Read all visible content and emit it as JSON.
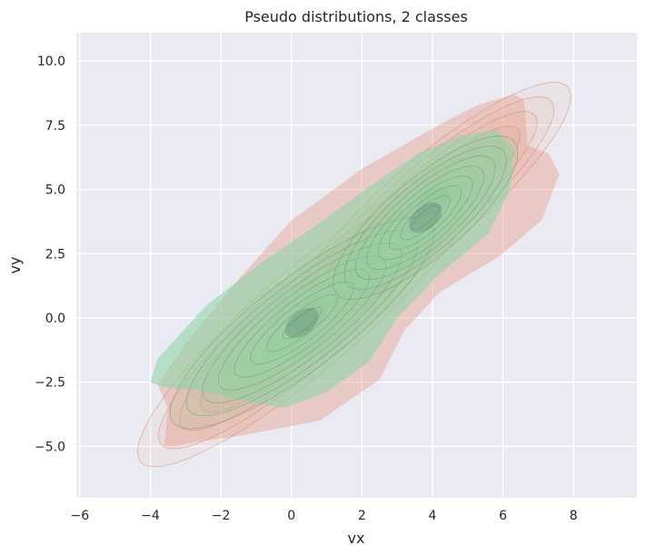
{
  "chart_data": {
    "type": "kde-contour",
    "title": "Pseudo distributions, 2 classes",
    "xlabel": "vx",
    "ylabel": "vy",
    "xlim": [
      -6.1,
      9.8
    ],
    "ylim": [
      -7.0,
      11.1
    ],
    "xticks": [
      -6,
      -4,
      -2,
      0,
      2,
      4,
      6,
      8
    ],
    "yticks": [
      -5.0,
      -2.5,
      0.0,
      2.5,
      5.0,
      7.5,
      10.0
    ],
    "xtick_labels": [
      "−6",
      "−4",
      "−2",
      "0",
      "2",
      "4",
      "6",
      "8"
    ],
    "ytick_labels": [
      "−5.0",
      "−2.5",
      "0.0",
      "2.5",
      "5.0",
      "7.5",
      "10.0"
    ],
    "grid": true,
    "background": "#eaeaf2",
    "series": [
      {
        "color": "#e8a28f",
        "fill_alpha": 0.45,
        "line_color": "#d9825e",
        "centers": [
          {
            "x": 0.5,
            "y": 0.0,
            "sx": 2.6,
            "sy": 3.1,
            "rho": 0.9,
            "weight": 0.6
          },
          {
            "x": 4.0,
            "y": 4.5,
            "sx": 2.1,
            "sy": 2.5,
            "rho": 0.88,
            "weight": 0.4
          }
        ],
        "outer_contour": [
          [
            -3.6,
            -5.0
          ],
          [
            -3.5,
            -3.5
          ],
          [
            -3.8,
            -2.6
          ],
          [
            -3.0,
            -1.0
          ],
          [
            -1.5,
            1.5
          ],
          [
            0.0,
            3.8
          ],
          [
            2.0,
            5.8
          ],
          [
            4.3,
            7.6
          ],
          [
            5.3,
            8.3
          ],
          [
            6.3,
            8.7
          ],
          [
            6.6,
            8.5
          ],
          [
            6.7,
            6.7
          ],
          [
            7.3,
            6.4
          ],
          [
            7.6,
            5.6
          ],
          [
            7.1,
            3.8
          ],
          [
            5.9,
            2.4
          ],
          [
            4.2,
            1.0
          ],
          [
            3.2,
            -0.5
          ],
          [
            2.5,
            -2.4
          ],
          [
            0.8,
            -4.0
          ],
          [
            -1.5,
            -4.6
          ],
          [
            -2.6,
            -4.8
          ],
          [
            -3.3,
            -5.0
          ]
        ]
      },
      {
        "color": "#8fd6a8",
        "fill_alpha": 0.6,
        "line_color": "#5b9e6e",
        "centers": [
          {
            "x": 0.3,
            "y": -0.2,
            "sx": 2.0,
            "sy": 2.2,
            "rho": 0.85,
            "weight": 0.6
          },
          {
            "x": 3.8,
            "y": 3.9,
            "sx": 1.4,
            "sy": 1.7,
            "rho": 0.8,
            "weight": 0.4
          }
        ],
        "outer_contour": [
          [
            -4.0,
            -2.5
          ],
          [
            -3.8,
            -1.6
          ],
          [
            -2.4,
            0.5
          ],
          [
            -0.8,
            2.2
          ],
          [
            0.8,
            3.7
          ],
          [
            2.3,
            5.2
          ],
          [
            3.6,
            6.4
          ],
          [
            4.8,
            7.1
          ],
          [
            5.8,
            7.3
          ],
          [
            6.3,
            6.6
          ],
          [
            6.2,
            5.0
          ],
          [
            5.6,
            3.3
          ],
          [
            4.2,
            1.7
          ],
          [
            3.0,
            0.0
          ],
          [
            2.2,
            -1.7
          ],
          [
            1.0,
            -2.9
          ],
          [
            -0.2,
            -3.5
          ],
          [
            -1.5,
            -3.2
          ],
          [
            -2.6,
            -2.8
          ],
          [
            -3.6,
            -2.7
          ]
        ]
      }
    ]
  }
}
